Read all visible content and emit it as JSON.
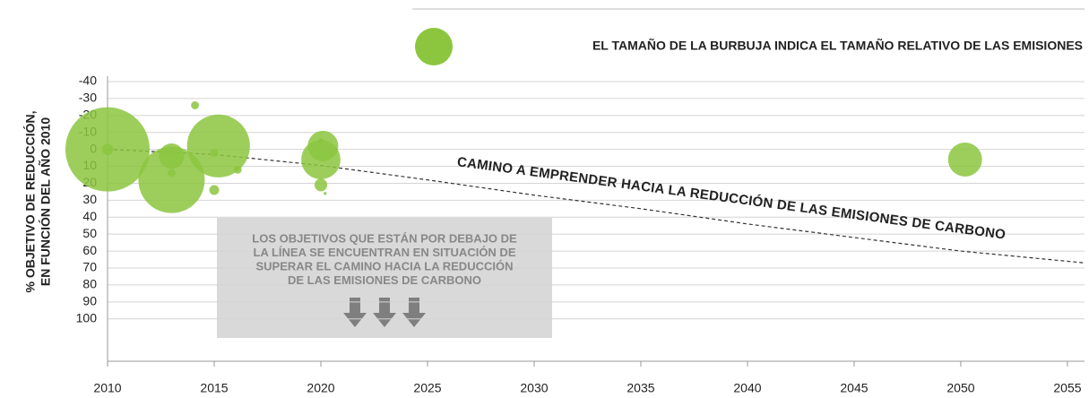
{
  "chart_data": {
    "type": "bubble",
    "ylabel": [
      "% OBJETIVO DE REDUCCIÓN,",
      "EN FUNCIÓN DEL AÑO 2010"
    ],
    "size_legend": "EL TAMAÑO DE LA BURBUJA INDICA EL TAMAÑO RELATIVO DE LAS EMISIONES",
    "series": [
      {
        "color": "#8cc63f",
        "x": [
          2010,
          2010,
          2013,
          2013,
          2013,
          2014.1,
          2015.2,
          2015,
          2015,
          2016.1,
          2020.1,
          2020,
          2020,
          2020,
          2020.2,
          2050.2
        ],
        "values": [
          0,
          0,
          18,
          4,
          14,
          -26,
          -2,
          2,
          24,
          12,
          -2,
          6,
          -5,
          21,
          26,
          6
        ],
        "sizes": [
          221,
          4,
          137,
          20,
          2,
          2,
          123,
          2,
          3,
          2,
          29,
          48,
          1,
          5,
          0.3,
          36
        ]
      }
    ],
    "trajectory": {
      "label": "CAMINO A EMPRENDER HACIA LA REDUCCIÓN DE LAS EMISIONES DE CARBONO",
      "x": [
        2010,
        2015,
        2020,
        2025,
        2030,
        2035,
        2040,
        2045,
        2050,
        2055,
        2055.8
      ],
      "values": [
        0,
        3,
        9.5,
        18,
        27,
        35,
        44,
        52,
        60,
        66,
        67
      ]
    },
    "box_text": [
      "LOS OBJETIVOS QUE ESTÁN POR DEBAJO DE",
      "LA LÍNEA SE ENCUENTRAN EN SITUACIÓN DE",
      "SUPERAR EL CAMINO HACIA LA REDUCCIÓN",
      "DE LAS EMISIONES DE CARBONO"
    ],
    "xlim": [
      2010,
      2055.8
    ],
    "xticks": [
      2010,
      2015,
      2020,
      2025,
      2030,
      2035,
      2040,
      2045,
      2050,
      2055
    ],
    "ylim": [
      125,
      -40
    ],
    "yticks": [
      -40,
      -30,
      -20,
      -10,
      0,
      10,
      20,
      30,
      40,
      50,
      60,
      70,
      80,
      90,
      100
    ],
    "grid": true
  }
}
